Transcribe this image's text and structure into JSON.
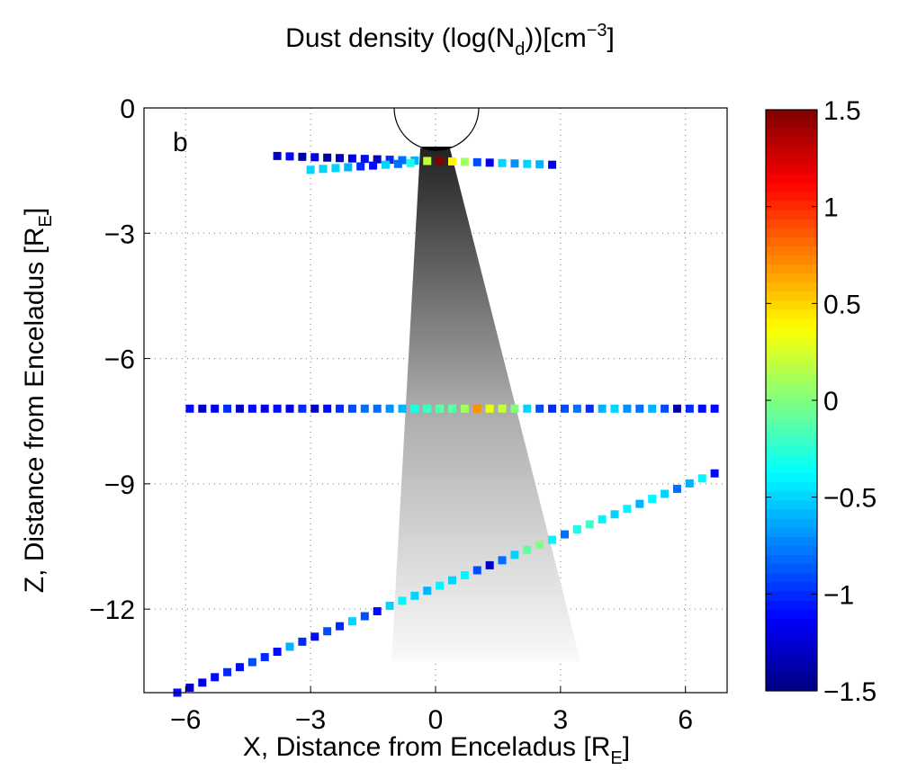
{
  "chart_data": {
    "type": "scatter",
    "title": [
      "Dust density (log(N",
      "d",
      "))[cm",
      "−3",
      "]"
    ],
    "panel_label": "b",
    "xlabel": [
      "X, Distance from Enceladus [R",
      "E",
      "]"
    ],
    "ylabel": [
      "Z, Distance from Enceladus [R",
      "E",
      "]"
    ],
    "xlim": [
      -7,
      7
    ],
    "ylim": [
      -14,
      0
    ],
    "xticks": [
      {
        "value": -6,
        "label": "−6"
      },
      {
        "value": -3,
        "label": "−3"
      },
      0,
      3,
      6
    ],
    "yticks": [
      0,
      {
        "value": -3,
        "label": "−3"
      },
      {
        "value": -6,
        "label": "−6"
      },
      {
        "value": -9,
        "label": "−9"
      },
      {
        "value": -12,
        "label": "−12"
      }
    ],
    "grid": true,
    "colormap": "jet",
    "clim": [
      -1.5,
      1.5
    ],
    "cticks": [
      1.5,
      1,
      0.5,
      0,
      {
        "value": -0.5,
        "label": "−0.5"
      },
      {
        "value": -1,
        "label": "−1"
      },
      {
        "value": -1.5,
        "label": "−1.5"
      }
    ],
    "series": [
      {
        "x": [
          -3.8,
          -3.5,
          -3.2,
          -2.9,
          -2.6,
          -2.3,
          -2.0,
          -1.7,
          -1.4,
          -1.1,
          -0.8,
          -0.5,
          -0.2,
          0.1,
          0.4,
          0.7,
          1.0,
          1.3,
          1.6,
          1.9,
          2.2,
          2.5,
          2.8
        ],
        "y": [
          -1.15,
          -1.16,
          -1.17,
          -1.18,
          -1.19,
          -1.2,
          -1.21,
          -1.22,
          -1.23,
          -1.24,
          -1.25,
          -1.26,
          -1.27,
          -1.27,
          -1.28,
          -1.29,
          -1.3,
          -1.31,
          -1.32,
          -1.33,
          -1.34,
          -1.35,
          -1.36
        ],
        "c": [
          -1.3,
          -1.1,
          -1.4,
          -1.2,
          -1.4,
          -1.3,
          -1.2,
          -1.1,
          -1.3,
          -1.0,
          -0.8,
          -0.6,
          0.2,
          1.5,
          0.4,
          0.1,
          -0.9,
          -1.2,
          -0.5,
          -0.7,
          -0.5,
          -0.6,
          -1.2
        ]
      },
      {
        "x": [
          -3.0,
          -2.7,
          -2.4,
          -2.1,
          -1.8,
          -1.5,
          -1.2,
          -0.9,
          -0.6
        ],
        "y": [
          -1.48,
          -1.46,
          -1.44,
          -1.42,
          -1.4,
          -1.38,
          -1.36,
          -1.34,
          -1.32
        ],
        "c": [
          -0.5,
          -0.5,
          -0.5,
          -0.6,
          -1.0,
          -1.1,
          -0.5,
          -0.8,
          -0.3
        ]
      },
      {
        "x": [
          -5.9,
          -5.6,
          -5.3,
          -5.0,
          -4.7,
          -4.4,
          -4.1,
          -3.8,
          -3.5,
          -3.2,
          -2.9,
          -2.6,
          -2.3,
          -2.0,
          -1.7,
          -1.4,
          -1.1,
          -0.8,
          -0.5,
          -0.2,
          0.1,
          0.4,
          0.7,
          1.0,
          1.3,
          1.6,
          1.9,
          2.2,
          2.5,
          2.8,
          3.1,
          3.4,
          3.7,
          4.0,
          4.3,
          4.6,
          4.9,
          5.2,
          5.5,
          5.8,
          6.1,
          6.4,
          6.7
        ],
        "y": [
          -7.2,
          -7.2,
          -7.2,
          -7.2,
          -7.2,
          -7.2,
          -7.2,
          -7.2,
          -7.2,
          -7.2,
          -7.2,
          -7.2,
          -7.2,
          -7.2,
          -7.2,
          -7.2,
          -7.2,
          -7.2,
          -7.2,
          -7.2,
          -7.2,
          -7.2,
          -7.2,
          -7.2,
          -7.2,
          -7.2,
          -7.2,
          -7.2,
          -7.2,
          -7.2,
          -7.2,
          -7.2,
          -7.2,
          -7.2,
          -7.2,
          -7.2,
          -7.2,
          -7.2,
          -7.2,
          -7.2,
          -7.2,
          -7.2,
          -7.2
        ],
        "c": [
          -1.1,
          -1.3,
          -1.2,
          -1.0,
          -1.3,
          -1.1,
          -1.2,
          -1.1,
          -1.2,
          -1.0,
          -1.3,
          -1.1,
          -1.0,
          -0.9,
          -0.8,
          -0.8,
          -0.7,
          -0.6,
          -0.3,
          -0.2,
          -0.1,
          -0.1,
          0.1,
          0.7,
          0.3,
          0.2,
          0.0,
          -0.5,
          -0.9,
          -1.0,
          -0.9,
          -0.8,
          -1.0,
          -0.6,
          -0.5,
          -0.7,
          -0.8,
          -0.6,
          -0.9,
          -1.4,
          -1.0,
          -1.1,
          -1.1
        ]
      },
      {
        "x": [
          -6.2,
          -5.9,
          -5.6,
          -5.3,
          -5.0,
          -4.7,
          -4.4,
          -4.1,
          -3.8,
          -3.5,
          -3.2,
          -2.9,
          -2.6,
          -2.3,
          -2.0,
          -1.7,
          -1.4,
          -1.1,
          -0.8,
          -0.5,
          -0.2,
          0.1,
          0.4,
          0.7,
          1.0,
          1.3,
          1.6,
          1.9,
          2.2,
          2.5,
          2.8,
          3.1,
          3.4,
          3.7,
          4.0,
          4.3,
          4.6,
          4.9,
          5.2,
          5.5,
          5.8,
          6.1,
          6.4,
          6.7
        ],
        "y": [
          -14.0,
          -13.88,
          -13.76,
          -13.63,
          -13.51,
          -13.39,
          -13.27,
          -13.15,
          -13.02,
          -12.9,
          -12.78,
          -12.66,
          -12.53,
          -12.41,
          -12.29,
          -12.17,
          -12.05,
          -11.92,
          -11.8,
          -11.68,
          -11.56,
          -11.44,
          -11.31,
          -11.19,
          -11.07,
          -10.95,
          -10.83,
          -10.7,
          -10.58,
          -10.46,
          -10.34,
          -10.21,
          -10.09,
          -9.97,
          -9.85,
          -9.73,
          -9.6,
          -9.48,
          -9.36,
          -9.24,
          -9.12,
          -8.99,
          -8.87,
          -8.75
        ],
        "c": [
          -1.1,
          -1.3,
          -1.2,
          -1.1,
          -1.0,
          -1.1,
          -0.9,
          -1.0,
          -1.1,
          -0.6,
          -1.0,
          -1.1,
          -0.9,
          -1.0,
          -0.5,
          -0.9,
          -1.1,
          -0.5,
          -0.4,
          -0.5,
          -0.6,
          -0.4,
          -0.5,
          -0.4,
          -0.9,
          -1.3,
          -0.8,
          -0.5,
          -0.1,
          0.0,
          -0.4,
          -0.8,
          -0.3,
          -0.2,
          -0.4,
          -0.5,
          -0.4,
          -0.6,
          -0.4,
          -0.5,
          -0.8,
          -0.6,
          -0.4,
          -1.1
        ]
      }
    ]
  }
}
